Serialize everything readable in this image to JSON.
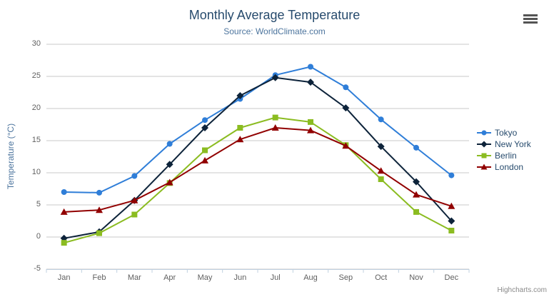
{
  "credits": "Highcharts.com",
  "chart_data": {
    "type": "line",
    "title": "Monthly Average Temperature",
    "subtitle": "Source: WorldClimate.com",
    "categories": [
      "Jan",
      "Feb",
      "Mar",
      "Apr",
      "May",
      "Jun",
      "Jul",
      "Aug",
      "Sep",
      "Oct",
      "Nov",
      "Dec"
    ],
    "series": [
      {
        "name": "Tokyo",
        "color": "#2f7ed8",
        "marker": "circle",
        "values": [
          7.0,
          6.9,
          9.5,
          14.5,
          18.2,
          21.5,
          25.2,
          26.5,
          23.3,
          18.3,
          13.9,
          9.6
        ]
      },
      {
        "name": "New York",
        "color": "#0d233a",
        "marker": "diamond",
        "values": [
          -0.2,
          0.8,
          5.7,
          11.3,
          17.0,
          22.0,
          24.8,
          24.1,
          20.1,
          14.1,
          8.6,
          2.5
        ]
      },
      {
        "name": "Berlin",
        "color": "#8bbc21",
        "marker": "square",
        "values": [
          -0.9,
          0.6,
          3.5,
          8.4,
          13.5,
          17.0,
          18.6,
          17.9,
          14.3,
          9.0,
          3.9,
          1.0
        ]
      },
      {
        "name": "London",
        "color": "#910000",
        "marker": "triangle",
        "values": [
          3.9,
          4.2,
          5.7,
          8.5,
          11.9,
          15.2,
          17.0,
          16.6,
          14.2,
          10.3,
          6.6,
          4.8
        ]
      }
    ],
    "xlabel": "",
    "ylabel": "Temperature (°C)",
    "ylim": [
      -5,
      30
    ],
    "ytick_interval": 5,
    "ytick_labels": [
      "30",
      "25",
      "20",
      "15",
      "10",
      "5",
      "0",
      "-5"
    ],
    "grid": true,
    "legend_position": "right",
    "styles": {
      "background": "#ffffff",
      "title_color": "#274b6d",
      "subtitle_color": "#4d759e",
      "axis_title_color": "#4d759e",
      "axis_label_color": "#606060",
      "grid_color": "#c8c8c8",
      "axis_line_color": "#c0d0e0",
      "tick_color": "#c0d0e0",
      "legend_text_color": "#274b6d",
      "credits_color": "#8a8a8a"
    }
  }
}
